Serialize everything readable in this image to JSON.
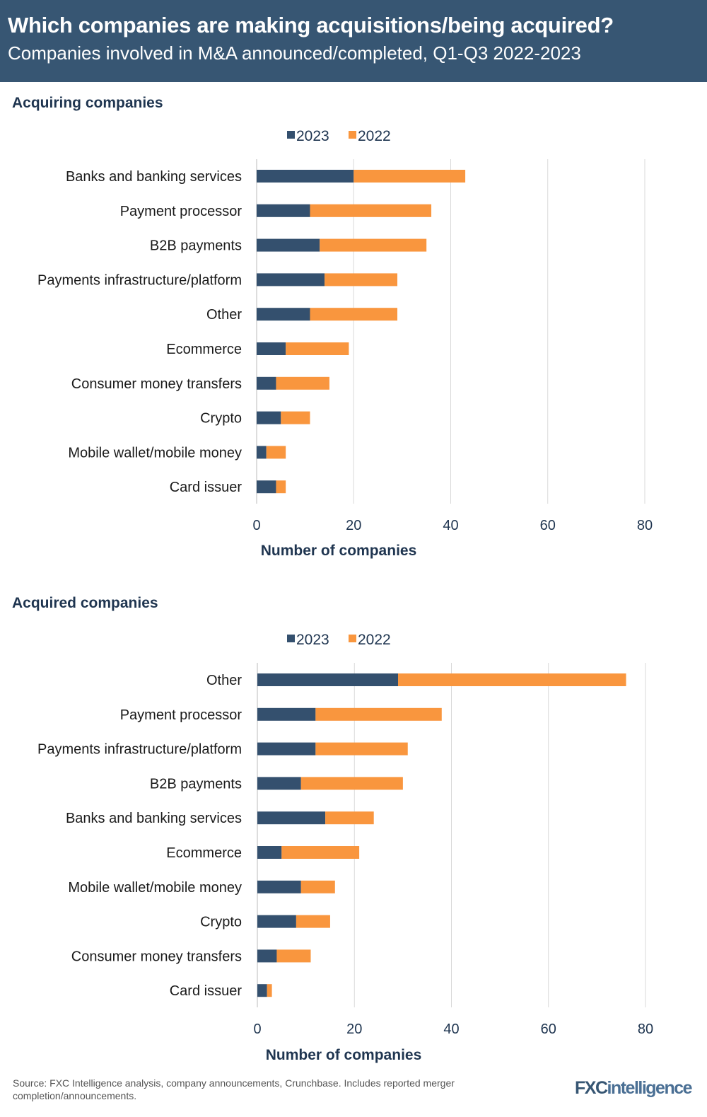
{
  "header": {
    "title": "Which companies are making acquisitions/being acquired?",
    "subtitle": "Companies involved in M&A announced/completed, Q1-Q3 2022-2023"
  },
  "colors": {
    "header": "#375673",
    "series_2023": "#34506e",
    "series_2022": "#f9963e",
    "grid": "#d9d9d9"
  },
  "chart_data": [
    {
      "type": "bar",
      "orientation": "horizontal",
      "stacked": true,
      "title": "Acquiring companies",
      "xlabel": "Number of companies",
      "xlim": [
        0,
        80
      ],
      "xticks": [
        0,
        20,
        40,
        60,
        80
      ],
      "grid": true,
      "legend": "top",
      "categories": [
        "Banks and banking services",
        "Payment processor",
        "B2B payments",
        "Payments infrastructure/platform",
        "Other",
        "Ecommerce",
        "Consumer money transfers",
        "Crypto",
        "Mobile wallet/mobile money",
        "Card issuer"
      ],
      "series": [
        {
          "name": "2023",
          "values": [
            20,
            11,
            13,
            14,
            11,
            6,
            4,
            5,
            2,
            4
          ]
        },
        {
          "name": "2022",
          "values": [
            23,
            25,
            22,
            15,
            18,
            13,
            11,
            6,
            4,
            2
          ]
        }
      ]
    },
    {
      "type": "bar",
      "orientation": "horizontal",
      "stacked": true,
      "title": "Acquired companies",
      "xlabel": "Number of companies",
      "xlim": [
        0,
        80
      ],
      "xticks": [
        0,
        20,
        40,
        60,
        80
      ],
      "grid": true,
      "legend": "top",
      "categories": [
        "Other",
        "Payment processor",
        "Payments infrastructure/platform",
        "B2B payments",
        "Banks and banking services",
        "Ecommerce",
        "Mobile wallet/mobile money",
        "Crypto",
        "Consumer money transfers",
        "Card issuer"
      ],
      "series": [
        {
          "name": "2023",
          "values": [
            29,
            12,
            12,
            9,
            14,
            5,
            9,
            8,
            4,
            2
          ]
        },
        {
          "name": "2022",
          "values": [
            47,
            26,
            19,
            21,
            10,
            16,
            7,
            7,
            7,
            1
          ]
        }
      ]
    }
  ],
  "footer": {
    "source": "Source: FXC Intelligence analysis, company announcements,  Crunchbase. Includes reported merger completion/announcements.",
    "logo": "FXCintelligence"
  }
}
